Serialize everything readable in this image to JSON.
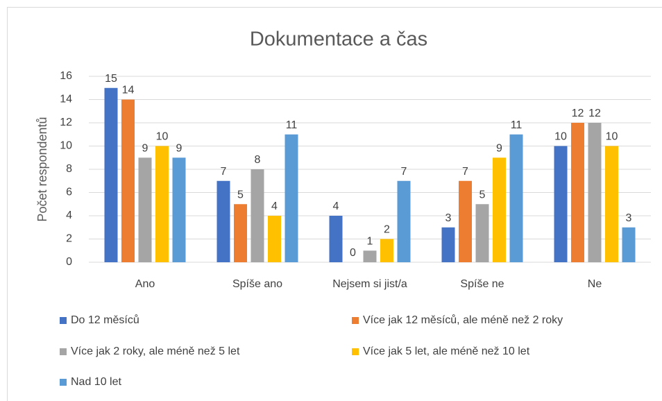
{
  "chart_data": {
    "type": "bar",
    "title": "Dokumentace a čas",
    "y_label": "Počet respondentů",
    "categories": [
      "Ano",
      "Spíše ano",
      "Nejsem si jist/a",
      "Spíše ne",
      "Ne"
    ],
    "series": [
      {
        "name": "Do 12 měsíců",
        "color": "#4472c4",
        "values": [
          15,
          7,
          4,
          3,
          10
        ]
      },
      {
        "name": "Více jak 12 měsíců, ale méně než 2 roky",
        "color": "#ed7d31",
        "values": [
          14,
          5,
          0,
          7,
          12
        ]
      },
      {
        "name": "Více jak 2 roky, ale méně než 5 let",
        "color": "#a5a5a5",
        "values": [
          9,
          8,
          1,
          5,
          12
        ]
      },
      {
        "name": "Více jak 5 let, ale méně než 10 let",
        "color": "#ffc000",
        "values": [
          10,
          4,
          2,
          9,
          10
        ]
      },
      {
        "name": "Nad 10 let",
        "color": "#5b9bd5",
        "values": [
          9,
          11,
          7,
          11,
          3
        ]
      }
    ],
    "ylim": [
      0,
      16
    ],
    "yticks": [
      0,
      2,
      4,
      6,
      8,
      10,
      12,
      14,
      16
    ],
    "grid": true,
    "legend": "bottom"
  }
}
